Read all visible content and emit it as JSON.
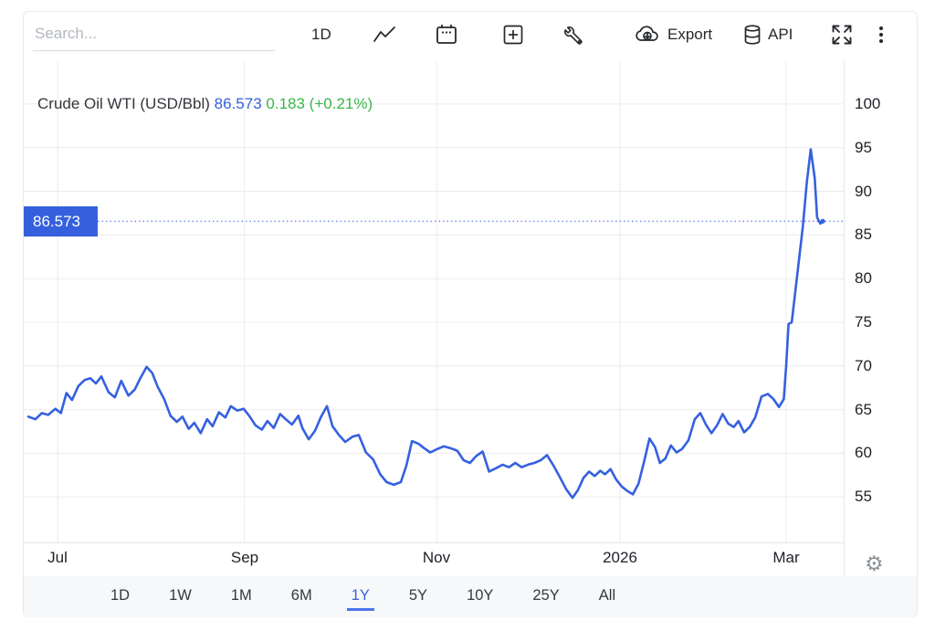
{
  "toolbar": {
    "search_placeholder": "Search...",
    "interval_label": "1D",
    "export_label": "Export",
    "api_label": "API"
  },
  "chart_header": {
    "title": "Crude Oil WTI (USD/Bbl)",
    "price": "86.573",
    "change": "0.183",
    "change_pct": "(+0.21%)"
  },
  "price_badge": "86.573",
  "gear_glyph": "⚙",
  "range_tabs": {
    "items": [
      "1D",
      "1W",
      "1M",
      "6M",
      "1Y",
      "5Y",
      "10Y",
      "25Y",
      "All"
    ],
    "active": "1Y"
  },
  "colors": {
    "accent_blue": "#3560e0",
    "badge_blue": "#3560dd",
    "change_green": "#3cb54a",
    "gridline": "#ececee",
    "axis_line": "#e2e5e8",
    "tabs_bar_bg": "#f7f8f9"
  },
  "chart_data": {
    "type": "line",
    "title": "Crude Oil WTI (USD/Bbl)",
    "unit": "USD/Bbl",
    "last_price": 86.573,
    "change": 0.183,
    "change_pct": "+0.21%",
    "line_color": "#3560e0",
    "grid": true,
    "ylim": [
      49.8,
      104.9
    ],
    "y_ticks": [
      100,
      95,
      90,
      85,
      80,
      75,
      70,
      65,
      60,
      55
    ],
    "x_range_approx": [
      "2025-06-21",
      "2026-03-10"
    ],
    "x_ticks": [
      {
        "label": "Jul",
        "f": 0.037
      },
      {
        "label": "Sep",
        "f": 0.272
      },
      {
        "label": "Nov",
        "f": 0.514
      },
      {
        "label": "2026",
        "f": 0.745
      },
      {
        "label": "Mar",
        "f": 0.954
      }
    ],
    "points": [
      [
        0.0,
        64.2
      ],
      [
        0.009,
        63.9
      ],
      [
        0.017,
        64.6
      ],
      [
        0.025,
        64.4
      ],
      [
        0.034,
        65.1
      ],
      [
        0.041,
        64.6
      ],
      [
        0.048,
        66.9
      ],
      [
        0.055,
        66.1
      ],
      [
        0.063,
        67.7
      ],
      [
        0.071,
        68.4
      ],
      [
        0.078,
        68.6
      ],
      [
        0.085,
        68.0
      ],
      [
        0.092,
        68.8
      ],
      [
        0.101,
        67.0
      ],
      [
        0.109,
        66.4
      ],
      [
        0.117,
        68.3
      ],
      [
        0.126,
        66.6
      ],
      [
        0.134,
        67.3
      ],
      [
        0.141,
        68.6
      ],
      [
        0.149,
        69.9
      ],
      [
        0.156,
        69.2
      ],
      [
        0.163,
        67.6
      ],
      [
        0.171,
        66.2
      ],
      [
        0.179,
        64.3
      ],
      [
        0.187,
        63.6
      ],
      [
        0.194,
        64.2
      ],
      [
        0.202,
        62.8
      ],
      [
        0.209,
        63.5
      ],
      [
        0.217,
        62.3
      ],
      [
        0.225,
        63.9
      ],
      [
        0.232,
        63.1
      ],
      [
        0.24,
        64.7
      ],
      [
        0.248,
        64.1
      ],
      [
        0.255,
        65.4
      ],
      [
        0.263,
        64.9
      ],
      [
        0.271,
        65.1
      ],
      [
        0.278,
        64.3
      ],
      [
        0.286,
        63.2
      ],
      [
        0.294,
        62.7
      ],
      [
        0.301,
        63.7
      ],
      [
        0.309,
        62.9
      ],
      [
        0.317,
        64.5
      ],
      [
        0.324,
        63.9
      ],
      [
        0.332,
        63.3
      ],
      [
        0.34,
        64.3
      ],
      [
        0.345,
        62.9
      ],
      [
        0.353,
        61.6
      ],
      [
        0.361,
        62.6
      ],
      [
        0.368,
        64.1
      ],
      [
        0.376,
        65.4
      ],
      [
        0.383,
        63.1
      ],
      [
        0.391,
        62.1
      ],
      [
        0.399,
        61.3
      ],
      [
        0.408,
        61.9
      ],
      [
        0.416,
        62.1
      ],
      [
        0.425,
        60.1
      ],
      [
        0.434,
        59.3
      ],
      [
        0.443,
        57.6
      ],
      [
        0.451,
        56.7
      ],
      [
        0.46,
        56.4
      ],
      [
        0.469,
        56.7
      ],
      [
        0.476,
        58.6
      ],
      [
        0.483,
        61.4
      ],
      [
        0.491,
        61.1
      ],
      [
        0.498,
        60.6
      ],
      [
        0.506,
        60.1
      ],
      [
        0.515,
        60.5
      ],
      [
        0.523,
        60.8
      ],
      [
        0.531,
        60.6
      ],
      [
        0.54,
        60.3
      ],
      [
        0.548,
        59.2
      ],
      [
        0.556,
        58.9
      ],
      [
        0.564,
        59.7
      ],
      [
        0.572,
        60.2
      ],
      [
        0.58,
        57.9
      ],
      [
        0.589,
        58.3
      ],
      [
        0.597,
        58.7
      ],
      [
        0.605,
        58.4
      ],
      [
        0.613,
        58.9
      ],
      [
        0.621,
        58.4
      ],
      [
        0.629,
        58.7
      ],
      [
        0.637,
        58.9
      ],
      [
        0.645,
        59.2
      ],
      [
        0.653,
        59.8
      ],
      [
        0.661,
        58.6
      ],
      [
        0.669,
        57.3
      ],
      [
        0.677,
        55.9
      ],
      [
        0.685,
        54.9
      ],
      [
        0.692,
        55.8
      ],
      [
        0.699,
        57.2
      ],
      [
        0.706,
        57.9
      ],
      [
        0.713,
        57.4
      ],
      [
        0.72,
        58.0
      ],
      [
        0.726,
        57.6
      ],
      [
        0.733,
        58.2
      ],
      [
        0.74,
        57.0
      ],
      [
        0.747,
        56.2
      ],
      [
        0.754,
        55.7
      ],
      [
        0.761,
        55.3
      ],
      [
        0.768,
        56.5
      ],
      [
        0.775,
        59.0
      ],
      [
        0.782,
        61.7
      ],
      [
        0.789,
        60.7
      ],
      [
        0.795,
        58.9
      ],
      [
        0.802,
        59.4
      ],
      [
        0.809,
        60.9
      ],
      [
        0.816,
        60.1
      ],
      [
        0.823,
        60.5
      ],
      [
        0.831,
        61.5
      ],
      [
        0.839,
        63.9
      ],
      [
        0.846,
        64.6
      ],
      [
        0.853,
        63.3
      ],
      [
        0.86,
        62.3
      ],
      [
        0.867,
        63.2
      ],
      [
        0.874,
        64.5
      ],
      [
        0.881,
        63.4
      ],
      [
        0.888,
        63.0
      ],
      [
        0.894,
        63.7
      ],
      [
        0.901,
        62.4
      ],
      [
        0.908,
        63.0
      ],
      [
        0.915,
        64.1
      ],
      [
        0.923,
        66.5
      ],
      [
        0.931,
        66.8
      ],
      [
        0.938,
        66.2
      ],
      [
        0.945,
        65.3
      ],
      [
        0.951,
        66.2
      ],
      [
        0.954,
        70.0
      ],
      [
        0.957,
        74.8
      ],
      [
        0.961,
        75.0
      ],
      [
        0.968,
        80.5
      ],
      [
        0.975,
        86.0
      ],
      [
        0.98,
        91.0
      ],
      [
        0.985,
        94.8
      ],
      [
        0.99,
        91.5
      ],
      [
        0.993,
        87.0
      ],
      [
        0.997,
        86.3
      ],
      [
        1.0,
        86.573
      ]
    ]
  }
}
